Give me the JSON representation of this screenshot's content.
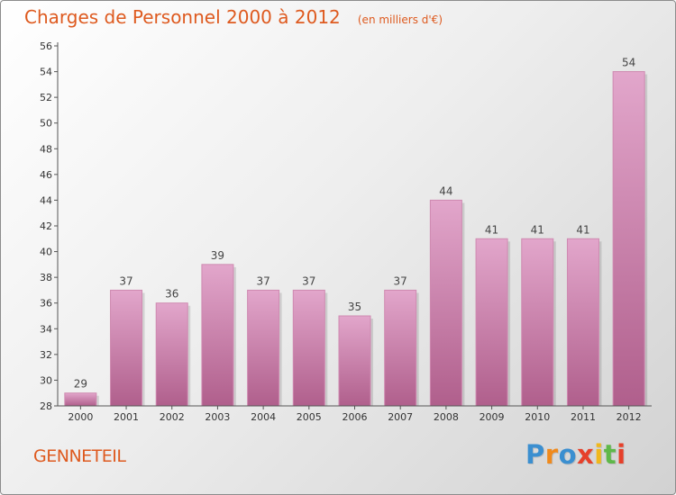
{
  "chart_data": {
    "type": "bar",
    "title": "Charges de Personnel 2000 à 2012",
    "unit_label": "(en milliers d'€)",
    "categories": [
      "2000",
      "2001",
      "2002",
      "2003",
      "2004",
      "2005",
      "2006",
      "2007",
      "2008",
      "2009",
      "2010",
      "2011",
      "2012"
    ],
    "values": [
      29,
      37,
      36,
      39,
      37,
      37,
      35,
      37,
      44,
      41,
      41,
      41,
      54
    ],
    "ylim": [
      28,
      56
    ],
    "yticks": [
      28,
      30,
      32,
      34,
      36,
      38,
      40,
      42,
      44,
      46,
      48,
      50,
      52,
      54,
      56
    ],
    "grid": false,
    "bar_color": "#c9679a"
  },
  "commune": "GENNETEIL",
  "logo": {
    "text": "Proxiti",
    "letters": [
      {
        "ch": "P",
        "color": "#3b8fd0"
      },
      {
        "ch": "r",
        "color": "#f08a1c"
      },
      {
        "ch": "o",
        "color": "#3b8fd0"
      },
      {
        "ch": "x",
        "color": "#e6402a"
      },
      {
        "ch": "i",
        "color": "#f0b81c"
      },
      {
        "ch": "t",
        "color": "#5fb84a"
      },
      {
        "ch": "i",
        "color": "#e6402a"
      }
    ]
  },
  "colors": {
    "title": "#de5a1f",
    "axis": "#555555"
  }
}
